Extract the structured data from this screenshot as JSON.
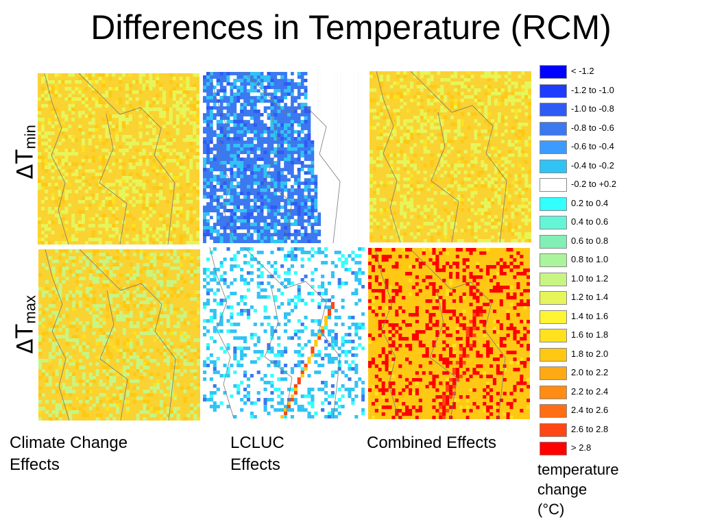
{
  "title": "Differences in Temperature (RCM)",
  "row_labels": [
    {
      "symbol": "Δ",
      "main": "T",
      "sub": "min"
    },
    {
      "symbol": "Δ",
      "main": "T",
      "sub": "max"
    }
  ],
  "column_captions": [
    {
      "line1": "Climate Change",
      "line2": "Effects"
    },
    {
      "line1": "LCLUC",
      "line2": "Effects"
    },
    {
      "line1": "Combined Effects",
      "line2": ""
    }
  ],
  "legend": {
    "title_lines": [
      "temperature",
      "change",
      "(°C)"
    ],
    "entries": [
      {
        "label": "< -1.2",
        "color": "#0000ff"
      },
      {
        "label": "-1.2 to -1.0",
        "color": "#1e3cff"
      },
      {
        "label": "-1.0 to -0.8",
        "color": "#2f5bf5"
      },
      {
        "label": "-0.8 to -0.6",
        "color": "#3c78f0"
      },
      {
        "label": "-0.6 to -0.4",
        "color": "#3c9bff"
      },
      {
        "label": "-0.4 to -0.2",
        "color": "#32c3f5"
      },
      {
        "label": "-0.2 to +0.2",
        "color": "#ffffff"
      },
      {
        "label": "0.2 to 0.4",
        "color": "#32ffff"
      },
      {
        "label": "0.4 to 0.6",
        "color": "#64f5d7"
      },
      {
        "label": "0.6 to 0.8",
        "color": "#82f0b4"
      },
      {
        "label": "0.8 to 1.0",
        "color": "#aaf59b"
      },
      {
        "label": "1.0 to 1.2",
        "color": "#c8f582"
      },
      {
        "label": "1.2 to 1.4",
        "color": "#e6f55a"
      },
      {
        "label": "1.4 to 1.6",
        "color": "#fff532"
      },
      {
        "label": "1.6 to 1.8",
        "color": "#ffe11e"
      },
      {
        "label": "1.8 to 2.0",
        "color": "#ffc814"
      },
      {
        "label": "2.0 to 2.2",
        "color": "#ffaa14"
      },
      {
        "label": "2.2 to 2.4",
        "color": "#ff8c14"
      },
      {
        "label": "2.4 to 2.6",
        "color": "#ff6e14"
      },
      {
        "label": "2.6 to 2.8",
        "color": "#ff4614"
      },
      {
        "label": "> 2.8",
        "color": "#ff0000"
      }
    ]
  },
  "panels": [
    {
      "row": "tmin",
      "column": "climate-change",
      "base_color": "#fad232",
      "accent_color": "#e6f55a"
    },
    {
      "row": "tmin",
      "column": "lcluc",
      "base_color": "#3c78f0",
      "accent_color": "#32c3f5"
    },
    {
      "row": "tmin",
      "column": "combined",
      "base_color": "#fad232",
      "accent_color": "#e6f55a"
    },
    {
      "row": "tmax",
      "column": "climate-change",
      "base_color": "#fad232",
      "accent_color": "#c8f582"
    },
    {
      "row": "tmax",
      "column": "lcluc",
      "base_color": "#ffffff",
      "accent_color": "#32ffff"
    },
    {
      "row": "tmax",
      "column": "combined",
      "base_color": "#ffc814",
      "accent_color": "#ff0000"
    }
  ]
}
